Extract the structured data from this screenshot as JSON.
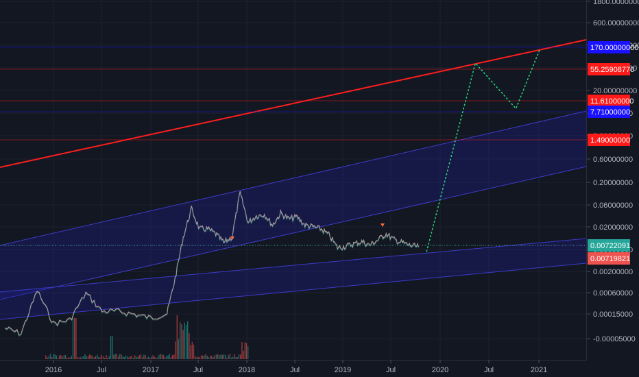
{
  "chart_data": {
    "type": "line",
    "title": "",
    "xlabel": "",
    "ylabel": "",
    "y_scale": "log",
    "grid": true,
    "x_tick_labels": [
      "2016",
      "Jul",
      "2017",
      "Jul",
      "2018",
      "Jul",
      "2019",
      "Jul",
      "2020",
      "Jul",
      "2021"
    ],
    "y_tick_labels": [
      "1800.00000000",
      "600.00000000",
      "200.00000000",
      "60.00000000",
      "20.00000000",
      "6.00000000",
      "2.00000000",
      "0.60000000",
      "0.20000000",
      "0.06000000",
      "0.02000000",
      "0.00600000",
      "0.00200000",
      "0.00060000",
      "0.00015000",
      "-0.00005000"
    ],
    "price_badges": [
      {
        "label": "170.00000000",
        "color": "#1a11ff"
      },
      {
        "label": "55.25908770",
        "color": "#ff1a1a"
      },
      {
        "label": "11.61000000",
        "color": "#ff1a1a"
      },
      {
        "label": "7.71000000",
        "color": "#1a11ff"
      },
      {
        "label": "1.49000000",
        "color": "#ff1a1a"
      },
      {
        "label": "0.00722091",
        "color": "#26a69a"
      },
      {
        "label": "0.00719821",
        "color": "#ef5350"
      }
    ],
    "series": [
      {
        "x": [
          "2015-07",
          "2015-09",
          "2015-11",
          "2016-01",
          "2016-03",
          "2016-05",
          "2016-07",
          "2016-09",
          "2016-11",
          "2017-01",
          "2017-03",
          "2017-04",
          "2017-05",
          "2017-06",
          "2017-07",
          "2017-08",
          "2017-09",
          "2017-10",
          "2017-11",
          "2017-12",
          "2018-01",
          "2018-02",
          "2018-03",
          "2018-04",
          "2018-05",
          "2018-06",
          "2018-07",
          "2018-08",
          "2018-09",
          "2018-10",
          "2018-11",
          "2018-12",
          "2019-01",
          "2019-02",
          "2019-03",
          "2019-04",
          "2019-05",
          "2019-06",
          "2019-07",
          "2019-08",
          "2019-09",
          "2019-10"
        ],
        "values": [
          0.00012,
          9e-05,
          0.0008,
          0.00015,
          0.00018,
          0.0007,
          0.00028,
          0.00028,
          0.00024,
          0.0002,
          0.00025,
          0.0015,
          0.012,
          0.05,
          0.018,
          0.018,
          0.014,
          0.009,
          0.012,
          0.11,
          0.025,
          0.035,
          0.038,
          0.022,
          0.04,
          0.03,
          0.033,
          0.022,
          0.02,
          0.018,
          0.013,
          0.007,
          0.0075,
          0.0085,
          0.0095,
          0.008,
          0.0105,
          0.014,
          0.0105,
          0.009,
          0.0078,
          0.0072
        ]
      }
    ],
    "projection": {
      "x": [
        "2019-11",
        "2020-05",
        "2020-10",
        "2021-01"
      ],
      "values": [
        0.0058,
        80,
        8,
        170
      ]
    }
  }
}
